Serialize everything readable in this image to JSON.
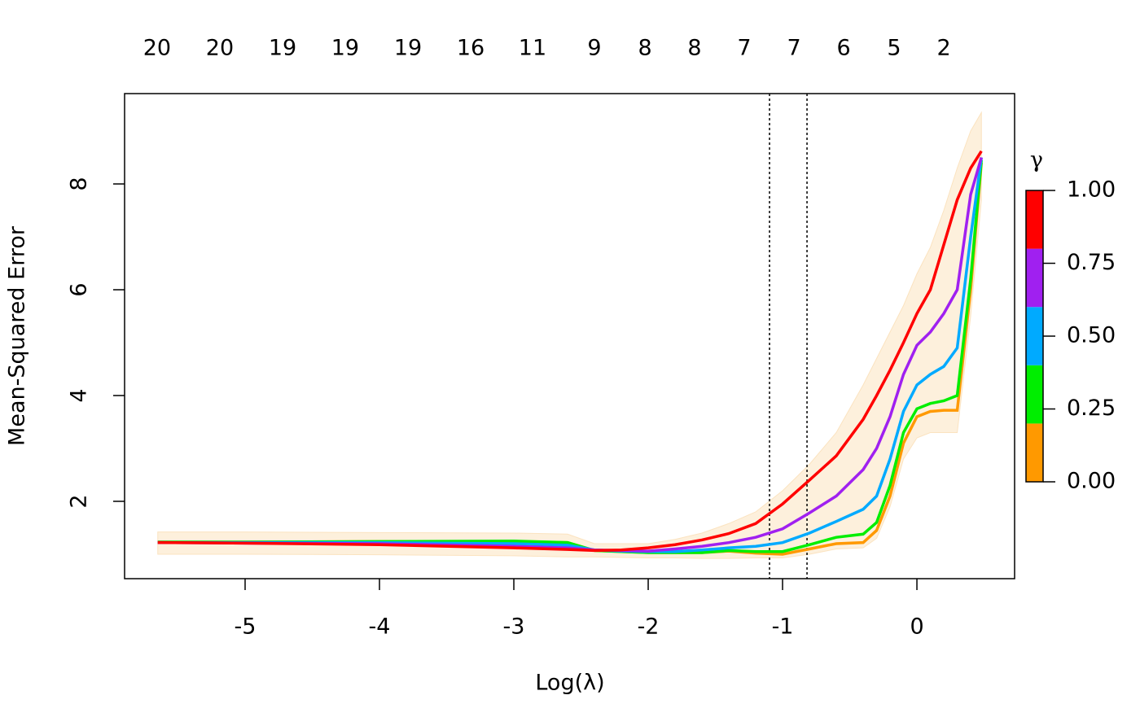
{
  "chart_data": {
    "type": "line",
    "xlabel": "Log(λ)",
    "ylabel": "Mean-Squared Error",
    "x": [
      -5.65,
      -5.0,
      -4.0,
      -3.0,
      -2.6,
      -2.4,
      -2.2,
      -2.0,
      -1.8,
      -1.6,
      -1.4,
      -1.2,
      -1.0,
      -0.8,
      -0.6,
      -0.4,
      -0.3,
      -0.2,
      -0.1,
      0.0,
      0.1,
      0.2,
      0.3,
      0.4,
      0.48
    ],
    "series": [
      {
        "color": "#ff9900",
        "values": [
          1.23,
          1.23,
          1.24,
          1.24,
          1.22,
          1.07,
          1.05,
          1.03,
          1.03,
          1.03,
          1.06,
          1.02,
          1.0,
          1.1,
          1.2,
          1.22,
          1.45,
          2.1,
          3.1,
          3.6,
          3.7,
          3.72,
          3.72,
          6.0,
          8.4
        ]
      },
      {
        "color": "#00ee00",
        "values": [
          1.23,
          1.23,
          1.24,
          1.25,
          1.22,
          1.07,
          1.05,
          1.03,
          1.03,
          1.03,
          1.07,
          1.05,
          1.05,
          1.18,
          1.32,
          1.38,
          1.6,
          2.3,
          3.3,
          3.75,
          3.85,
          3.9,
          4.0,
          6.2,
          8.45
        ]
      },
      {
        "color": "#00aaff",
        "values": [
          1.22,
          1.22,
          1.22,
          1.2,
          1.17,
          1.08,
          1.06,
          1.05,
          1.05,
          1.08,
          1.12,
          1.15,
          1.22,
          1.4,
          1.62,
          1.85,
          2.1,
          2.8,
          3.7,
          4.2,
          4.4,
          4.55,
          4.9,
          7.0,
          8.5
        ]
      },
      {
        "color": "#a020f0",
        "values": [
          1.22,
          1.21,
          1.2,
          1.15,
          1.12,
          1.08,
          1.07,
          1.06,
          1.1,
          1.15,
          1.22,
          1.32,
          1.48,
          1.78,
          2.1,
          2.6,
          3.0,
          3.6,
          4.4,
          4.95,
          5.2,
          5.55,
          6.0,
          7.8,
          8.5
        ]
      },
      {
        "color": "#ff0000",
        "values": [
          1.22,
          1.21,
          1.18,
          1.12,
          1.09,
          1.07,
          1.08,
          1.12,
          1.18,
          1.27,
          1.39,
          1.58,
          1.95,
          2.4,
          2.86,
          3.55,
          4.0,
          4.48,
          5.0,
          5.55,
          6.0,
          6.85,
          7.7,
          8.3,
          8.62
        ]
      }
    ],
    "band_color": "#fdf0dc",
    "band_upper": [
      1.42,
      1.42,
      1.41,
      1.4,
      1.38,
      1.2,
      1.2,
      1.2,
      1.28,
      1.4,
      1.58,
      1.8,
      2.2,
      2.7,
      3.3,
      4.2,
      4.7,
      5.2,
      5.7,
      6.3,
      6.8,
      7.5,
      8.3,
      9.0,
      9.35
    ],
    "band_lower": [
      1.0,
      1.0,
      0.99,
      0.97,
      0.95,
      0.95,
      0.94,
      0.93,
      0.93,
      0.92,
      0.92,
      0.93,
      0.93,
      1.0,
      1.1,
      1.12,
      1.3,
      1.9,
      2.8,
      3.2,
      3.3,
      3.3,
      3.3,
      5.5,
      7.7
    ],
    "vlines": [
      -1.097,
      -0.818
    ],
    "xlim": [
      -5.897,
      0.727
    ],
    "ylim": [
      0.538,
      9.708
    ],
    "xticks": [
      -5,
      -4,
      -3,
      -2,
      -1,
      0
    ],
    "yticks": [
      2,
      4,
      6,
      8
    ],
    "x2ticks": [
      {
        "value": -5.655,
        "label": "20"
      },
      {
        "value": -5.188,
        "label": "20"
      },
      {
        "value": -4.721,
        "label": "19"
      },
      {
        "value": -4.255,
        "label": "19"
      },
      {
        "value": -3.788,
        "label": "19"
      },
      {
        "value": -3.321,
        "label": "16"
      },
      {
        "value": -2.861,
        "label": "11"
      },
      {
        "value": -2.4,
        "label": "9"
      },
      {
        "value": -2.024,
        "label": "8"
      },
      {
        "value": -1.655,
        "label": "8"
      },
      {
        "value": -1.285,
        "label": "7"
      },
      {
        "value": -0.915,
        "label": "7"
      },
      {
        "value": -0.545,
        "label": "6"
      },
      {
        "value": -0.17,
        "label": "5"
      },
      {
        "value": 0.2,
        "label": "2"
      }
    ],
    "colorbar": {
      "title": "γ",
      "breaks": [
        0,
        0.2,
        0.4,
        0.6,
        0.8,
        1
      ],
      "colors": [
        "#ff9900",
        "#00ee00",
        "#00aaff",
        "#a020f0",
        "#ff0000"
      ],
      "ticks": [
        {
          "value": 0,
          "label": "0.00"
        },
        {
          "value": 0.25,
          "label": "0.25"
        },
        {
          "value": 0.5,
          "label": "0.50"
        },
        {
          "value": 0.75,
          "label": "0.75"
        },
        {
          "value": 1,
          "label": "1.00"
        }
      ]
    }
  }
}
